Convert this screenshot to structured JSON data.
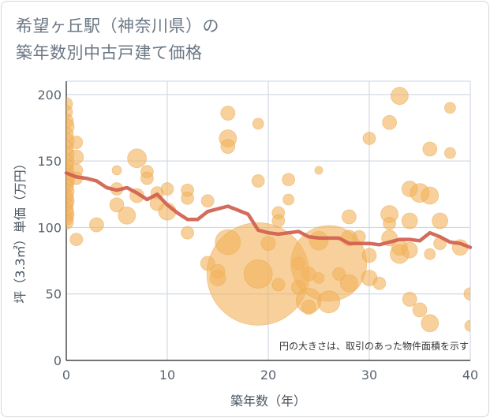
{
  "chart_data": {
    "type": "scatter",
    "title_lines": [
      "希望ヶ丘駅（神奈川県）の",
      "築年数別中古戸建て価格"
    ],
    "xlabel": "築年数（年）",
    "ylabel": "坪（3.3㎡）単価（万円）",
    "xlim": [
      0,
      40
    ],
    "ylim": [
      0,
      210
    ],
    "xticks": [
      0,
      10,
      20,
      30,
      40
    ],
    "yticks": [
      0,
      50,
      100,
      150,
      200
    ],
    "grid": true,
    "note": "円の大きさは、取引のあった物件面積を示す",
    "colors": {
      "bubble": "#f2b35e",
      "line": "#d0604e",
      "grid": "#c7d3df"
    },
    "points": [
      {
        "x": 0,
        "y": 193,
        "s": 8
      },
      {
        "x": 0,
        "y": 187,
        "s": 8
      },
      {
        "x": 0,
        "y": 180,
        "s": 9
      },
      {
        "x": 0,
        "y": 176,
        "s": 10
      },
      {
        "x": 0,
        "y": 170,
        "s": 9
      },
      {
        "x": 0,
        "y": 165,
        "s": 10
      },
      {
        "x": 0,
        "y": 160,
        "s": 9
      },
      {
        "x": 0,
        "y": 155,
        "s": 10
      },
      {
        "x": 0,
        "y": 150,
        "s": 10
      },
      {
        "x": 0,
        "y": 146,
        "s": 9
      },
      {
        "x": 0,
        "y": 142,
        "s": 10
      },
      {
        "x": 0,
        "y": 138,
        "s": 11
      },
      {
        "x": 0,
        "y": 134,
        "s": 10
      },
      {
        "x": 0,
        "y": 131,
        "s": 9
      },
      {
        "x": 0,
        "y": 127,
        "s": 10
      },
      {
        "x": 0,
        "y": 123,
        "s": 9
      },
      {
        "x": 0,
        "y": 120,
        "s": 10
      },
      {
        "x": 0,
        "y": 117,
        "s": 9
      },
      {
        "x": 0,
        "y": 113,
        "s": 9
      },
      {
        "x": 0,
        "y": 110,
        "s": 10
      },
      {
        "x": 0,
        "y": 107,
        "s": 9
      },
      {
        "x": 0,
        "y": 104,
        "s": 9
      },
      {
        "x": 1,
        "y": 164,
        "s": 8
      },
      {
        "x": 1,
        "y": 153,
        "s": 9
      },
      {
        "x": 1,
        "y": 143,
        "s": 8
      },
      {
        "x": 1,
        "y": 137,
        "s": 8
      },
      {
        "x": 1,
        "y": 91,
        "s": 8
      },
      {
        "x": 3,
        "y": 102,
        "s": 9
      },
      {
        "x": 5,
        "y": 143,
        "s": 6
      },
      {
        "x": 5,
        "y": 129,
        "s": 8
      },
      {
        "x": 5,
        "y": 117,
        "s": 9
      },
      {
        "x": 6,
        "y": 109,
        "s": 11
      },
      {
        "x": 7,
        "y": 152,
        "s": 12
      },
      {
        "x": 7,
        "y": 124,
        "s": 9
      },
      {
        "x": 8,
        "y": 142,
        "s": 8
      },
      {
        "x": 8,
        "y": 137,
        "s": 8
      },
      {
        "x": 9,
        "y": 126,
        "s": 8
      },
      {
        "x": 9,
        "y": 118,
        "s": 9
      },
      {
        "x": 10,
        "y": 129,
        "s": 8
      },
      {
        "x": 10,
        "y": 112,
        "s": 11
      },
      {
        "x": 12,
        "y": 128,
        "s": 8
      },
      {
        "x": 12,
        "y": 122,
        "s": 8
      },
      {
        "x": 12,
        "y": 96,
        "s": 8
      },
      {
        "x": 14,
        "y": 120,
        "s": 8
      },
      {
        "x": 14,
        "y": 73,
        "s": 9
      },
      {
        "x": 15,
        "y": 67,
        "s": 9
      },
      {
        "x": 15,
        "y": 62,
        "s": 10
      },
      {
        "x": 16,
        "y": 186,
        "s": 9
      },
      {
        "x": 16,
        "y": 167,
        "s": 11
      },
      {
        "x": 16,
        "y": 161,
        "s": 9
      },
      {
        "x": 16,
        "y": 89,
        "s": 16
      },
      {
        "x": 19,
        "y": 178,
        "s": 7
      },
      {
        "x": 19,
        "y": 135,
        "s": 8
      },
      {
        "x": 19,
        "y": 65,
        "s": 65
      },
      {
        "x": 19,
        "y": 65,
        "s": 18
      },
      {
        "x": 20,
        "y": 88,
        "s": 9
      },
      {
        "x": 21,
        "y": 111,
        "s": 8
      },
      {
        "x": 21,
        "y": 105,
        "s": 8
      },
      {
        "x": 21,
        "y": 57,
        "s": 8
      },
      {
        "x": 22,
        "y": 136,
        "s": 8
      },
      {
        "x": 22,
        "y": 121,
        "s": 7
      },
      {
        "x": 23,
        "y": 73,
        "s": 8
      },
      {
        "x": 23,
        "y": 55,
        "s": 9
      },
      {
        "x": 24,
        "y": 65,
        "s": 9
      },
      {
        "x": 24,
        "y": 45,
        "s": 16
      },
      {
        "x": 24,
        "y": 40,
        "s": 9
      },
      {
        "x": 25,
        "y": 143,
        "s": 5
      },
      {
        "x": 25,
        "y": 90,
        "s": 12
      },
      {
        "x": 25,
        "y": 62,
        "s": 7
      },
      {
        "x": 26,
        "y": 73,
        "s": 48
      },
      {
        "x": 26,
        "y": 44,
        "s": 14
      },
      {
        "x": 27,
        "y": 65,
        "s": 8
      },
      {
        "x": 28,
        "y": 108,
        "s": 9
      },
      {
        "x": 28,
        "y": 92,
        "s": 10
      },
      {
        "x": 28,
        "y": 58,
        "s": 11
      },
      {
        "x": 29,
        "y": 93,
        "s": 8
      },
      {
        "x": 30,
        "y": 167,
        "s": 8
      },
      {
        "x": 30,
        "y": 79,
        "s": 9
      },
      {
        "x": 30,
        "y": 62,
        "s": 10
      },
      {
        "x": 31,
        "y": 58,
        "s": 8
      },
      {
        "x": 32,
        "y": 179,
        "s": 9
      },
      {
        "x": 32,
        "y": 110,
        "s": 11
      },
      {
        "x": 32,
        "y": 103,
        "s": 8
      },
      {
        "x": 32,
        "y": 92,
        "s": 10
      },
      {
        "x": 33,
        "y": 199,
        "s": 11
      },
      {
        "x": 33,
        "y": 85,
        "s": 10
      },
      {
        "x": 33,
        "y": 80,
        "s": 12
      },
      {
        "x": 34,
        "y": 129,
        "s": 10
      },
      {
        "x": 34,
        "y": 105,
        "s": 10
      },
      {
        "x": 34,
        "y": 83,
        "s": 10
      },
      {
        "x": 34,
        "y": 46,
        "s": 9
      },
      {
        "x": 35,
        "y": 126,
        "s": 12
      },
      {
        "x": 35,
        "y": 38,
        "s": 9
      },
      {
        "x": 36,
        "y": 159,
        "s": 9
      },
      {
        "x": 36,
        "y": 124,
        "s": 11
      },
      {
        "x": 36,
        "y": 80,
        "s": 7
      },
      {
        "x": 36,
        "y": 28,
        "s": 11
      },
      {
        "x": 37,
        "y": 105,
        "s": 10
      },
      {
        "x": 37,
        "y": 88,
        "s": 8
      },
      {
        "x": 38,
        "y": 190,
        "s": 7
      },
      {
        "x": 38,
        "y": 156,
        "s": 7
      },
      {
        "x": 39,
        "y": 85,
        "s": 10
      },
      {
        "x": 40,
        "y": 50,
        "s": 8
      },
      {
        "x": 40,
        "y": 26,
        "s": 7
      }
    ],
    "avg_line": {
      "x": [
        0,
        1,
        2,
        3,
        4,
        5,
        6,
        7,
        8,
        9,
        10,
        11,
        12,
        13,
        14,
        15,
        16,
        17,
        18,
        19,
        20,
        21,
        22,
        23,
        24,
        25,
        26,
        27,
        28,
        29,
        30,
        31,
        32,
        33,
        34,
        35,
        36,
        37,
        38,
        39,
        40
      ],
      "y": [
        141,
        138,
        137,
        135,
        130,
        128,
        130,
        126,
        121,
        125,
        117,
        111,
        106,
        106,
        112,
        114,
        116,
        113,
        110,
        98,
        96,
        95,
        96,
        97,
        93,
        92,
        92,
        92,
        88,
        88,
        88,
        87,
        89,
        91,
        91,
        90,
        96,
        93,
        89,
        88,
        85
      ]
    }
  }
}
